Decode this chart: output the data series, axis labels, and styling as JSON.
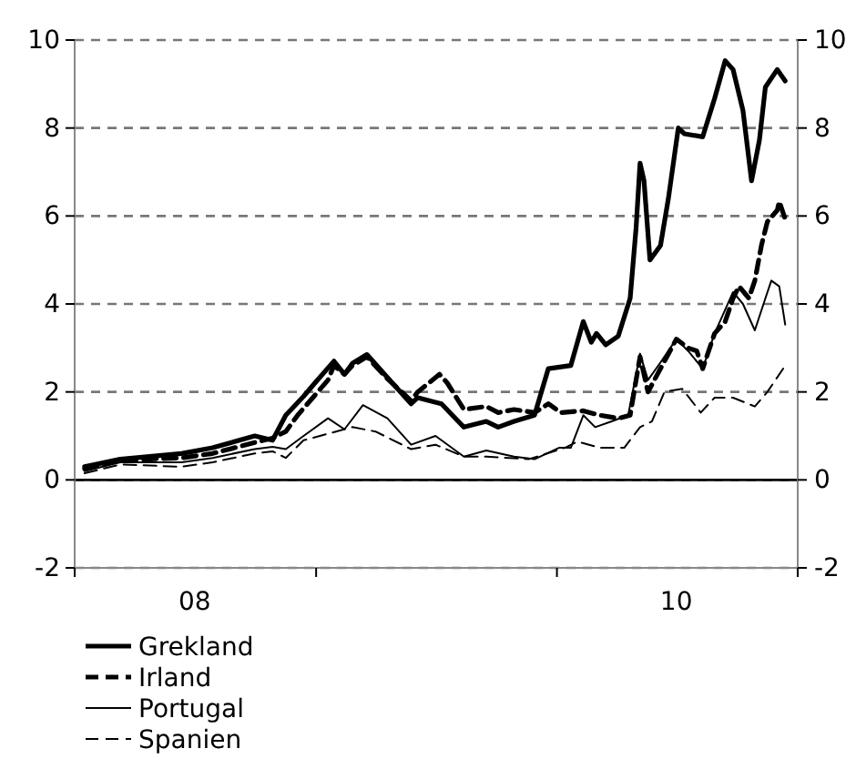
{
  "chart_data": {
    "type": "line",
    "ylim": [
      -2,
      10
    ],
    "yticks": [
      -2,
      0,
      2,
      4,
      6,
      8,
      10
    ],
    "y2lim": [
      -2,
      10
    ],
    "y2ticks": [
      -2,
      0,
      2,
      4,
      6,
      8,
      10
    ],
    "xlim": [
      "2008-01-01",
      "2011-01-01"
    ],
    "xticks": [
      {
        "value": "2008-01-01",
        "label": null
      },
      {
        "value": "2008-07-01",
        "label": "08"
      },
      {
        "value": "2009-01-01",
        "label": null
      },
      {
        "value": "2010-01-01",
        "label": null
      },
      {
        "value": "2010-07-01",
        "label": "10"
      },
      {
        "value": "2011-01-01",
        "label": null
      }
    ],
    "grid": "y",
    "legend": "bottom",
    "ref_lines": [
      {
        "axis": "y",
        "value": 0,
        "color": "#000000",
        "line_style": "solid"
      }
    ],
    "series": [
      {
        "name": "Grekland",
        "color": "#000000",
        "line_style": "solid",
        "x": [
          "2008-01-16",
          "2008-03-10",
          "2008-06-11",
          "2008-07-28",
          "2008-09-30",
          "2008-10-27",
          "2008-11-16",
          "2008-12-13",
          "2008-12-30",
          "2009-01-28",
          "2009-02-13",
          "2009-02-25",
          "2009-03-19",
          "2009-04-19",
          "2009-05-25",
          "2009-06-04",
          "2009-07-10",
          "2009-08-13",
          "2009-09-16",
          "2009-10-04",
          "2009-10-28",
          "2009-11-28",
          "2009-12-19",
          "2010-01-22",
          "2010-02-10",
          "2010-02-22",
          "2010-03-02",
          "2010-03-16",
          "2010-04-04",
          "2010-04-22",
          "2010-05-01",
          "2010-05-07",
          "2010-05-13",
          "2010-05-22",
          "2010-06-07",
          "2010-06-19",
          "2010-07-04",
          "2010-07-13",
          "2010-08-10",
          "2010-08-28",
          "2010-09-13",
          "2010-09-25",
          "2010-10-10",
          "2010-10-23",
          "2010-11-04",
          "2010-11-13",
          "2010-12-01",
          "2010-12-13"
        ],
        "values": [
          0.3,
          0.47,
          0.6,
          0.73,
          1.0,
          0.9,
          1.47,
          1.9,
          2.2,
          2.7,
          2.4,
          2.65,
          2.85,
          2.33,
          1.73,
          1.87,
          1.73,
          1.2,
          1.33,
          1.2,
          1.33,
          1.47,
          2.53,
          2.6,
          3.6,
          3.13,
          3.33,
          3.07,
          3.27,
          4.13,
          5.73,
          7.2,
          6.8,
          5.0,
          5.33,
          6.4,
          8.0,
          7.87,
          7.8,
          8.67,
          9.53,
          9.33,
          8.4,
          6.8,
          7.73,
          8.93,
          9.33,
          9.07
        ]
      },
      {
        "name": "Irland",
        "color": "#000000",
        "line_style": "dashed",
        "x": [
          "2008-01-16",
          "2008-03-10",
          "2008-06-11",
          "2008-07-28",
          "2008-09-30",
          "2008-10-27",
          "2008-11-16",
          "2008-12-04",
          "2009-01-19",
          "2009-01-28",
          "2009-02-13",
          "2009-02-25",
          "2009-03-19",
          "2009-04-19",
          "2009-05-25",
          "2009-06-04",
          "2009-07-07",
          "2009-07-19",
          "2009-08-13",
          "2009-09-16",
          "2009-10-04",
          "2009-10-28",
          "2009-11-28",
          "2009-12-19",
          "2010-01-07",
          "2010-02-10",
          "2010-03-07",
          "2010-04-04",
          "2010-04-22",
          "2010-05-07",
          "2010-05-19",
          "2010-06-07",
          "2010-07-01",
          "2010-07-19",
          "2010-08-01",
          "2010-08-10",
          "2010-08-28",
          "2010-09-13",
          "2010-09-25",
          "2010-10-04",
          "2010-10-19",
          "2010-10-28",
          "2010-11-07",
          "2010-11-16",
          "2010-12-01",
          "2010-12-04",
          "2010-12-13"
        ],
        "values": [
          0.25,
          0.45,
          0.5,
          0.6,
          0.85,
          0.95,
          1.1,
          1.47,
          2.27,
          2.6,
          2.4,
          2.6,
          2.8,
          2.3,
          1.8,
          2.0,
          2.4,
          2.2,
          1.6,
          1.67,
          1.53,
          1.6,
          1.53,
          1.73,
          1.53,
          1.57,
          1.47,
          1.4,
          1.47,
          2.8,
          2.0,
          2.53,
          3.2,
          3.0,
          2.93,
          2.53,
          3.33,
          3.6,
          4.13,
          4.4,
          4.13,
          4.53,
          5.33,
          5.87,
          6.13,
          6.33,
          5.93
        ]
      },
      {
        "name": "Portugal",
        "color": "#000000",
        "line_style": "solid",
        "x": [
          "2008-01-16",
          "2008-03-10",
          "2008-06-11",
          "2008-07-28",
          "2008-09-30",
          "2008-10-27",
          "2008-11-16",
          "2008-12-13",
          "2009-01-19",
          "2009-02-13",
          "2009-03-13",
          "2009-04-19",
          "2009-05-25",
          "2009-07-01",
          "2009-08-13",
          "2009-09-16",
          "2009-10-28",
          "2009-11-28",
          "2010-01-04",
          "2010-01-22",
          "2010-02-10",
          "2010-02-28",
          "2010-03-25",
          "2010-04-19",
          "2010-05-07",
          "2010-05-19",
          "2010-06-07",
          "2010-07-01",
          "2010-07-19",
          "2010-08-10",
          "2010-08-28",
          "2010-09-25",
          "2010-10-10",
          "2010-10-28",
          "2010-11-13",
          "2010-11-22",
          "2010-12-04",
          "2010-12-13"
        ],
        "values": [
          0.2,
          0.4,
          0.4,
          0.5,
          0.7,
          0.75,
          0.7,
          1.0,
          1.4,
          1.15,
          1.7,
          1.4,
          0.8,
          1.0,
          0.53,
          0.67,
          0.53,
          0.47,
          0.73,
          0.73,
          1.47,
          1.2,
          1.33,
          1.47,
          2.87,
          2.27,
          2.67,
          3.2,
          2.93,
          2.53,
          3.33,
          4.27,
          4.0,
          3.4,
          4.13,
          4.53,
          4.4,
          3.53
        ]
      },
      {
        "name": "Spanien",
        "color": "#000000",
        "line_style": "dashed",
        "x": [
          "2008-01-16",
          "2008-03-10",
          "2008-06-11",
          "2008-07-28",
          "2008-09-30",
          "2008-10-27",
          "2008-11-16",
          "2008-12-13",
          "2009-02-25",
          "2009-04-01",
          "2009-05-25",
          "2009-07-01",
          "2009-08-13",
          "2009-09-16",
          "2009-11-19",
          "2010-01-13",
          "2010-02-01",
          "2010-03-07",
          "2010-04-13",
          "2010-05-07",
          "2010-05-25",
          "2010-06-13",
          "2010-07-10",
          "2010-08-07",
          "2010-08-28",
          "2010-09-25",
          "2010-10-28",
          "2010-11-16",
          "2010-12-10"
        ],
        "values": [
          0.15,
          0.35,
          0.3,
          0.4,
          0.6,
          0.65,
          0.5,
          0.9,
          1.2,
          1.1,
          0.7,
          0.8,
          0.53,
          0.53,
          0.47,
          0.73,
          0.87,
          0.73,
          0.73,
          1.2,
          1.33,
          2.0,
          2.07,
          1.53,
          1.87,
          1.87,
          1.67,
          2.0,
          2.53
        ]
      }
    ]
  }
}
